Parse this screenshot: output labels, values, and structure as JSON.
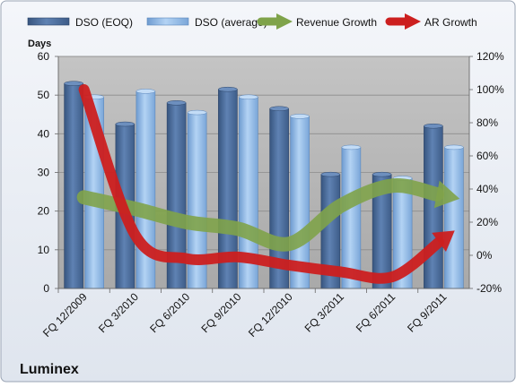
{
  "chart_data": {
    "type": "bar",
    "title": "",
    "company": "Luminex",
    "y_left_label": "Days",
    "y_left_range": [
      0,
      60
    ],
    "y_left_ticks": [
      "0",
      "10",
      "20",
      "30",
      "40",
      "50",
      "60"
    ],
    "y_right_range": [
      -20,
      120
    ],
    "y_right_ticks": [
      "-20%",
      "0%",
      "20%",
      "40%",
      "60%",
      "80%",
      "100%",
      "120%"
    ],
    "categories": [
      "FQ 12/2009",
      "FQ 3/2010",
      "FQ 6/2010",
      "FQ 9/2010",
      "FQ 12/2010",
      "FQ 3/2011",
      "FQ 6/2011",
      "FQ 9/2011"
    ],
    "legend_position": "top",
    "grid": true,
    "bar_series": [
      {
        "name": "DSO (EOQ)",
        "values": [
          53,
          42.5,
          48,
          51.5,
          46.5,
          29.5,
          29.5,
          42
        ],
        "color": "#4a6b9c"
      },
      {
        "name": "DSO (average)",
        "values": [
          49.5,
          51,
          45.5,
          49.5,
          44.5,
          36.5,
          28.5,
          36.5
        ],
        "color": "#8fb8e6"
      }
    ],
    "line_series": [
      {
        "name": "Revenue Growth",
        "values": [
          35,
          28,
          20,
          16,
          7,
          30,
          42,
          36
        ],
        "color": "#7fa34a"
      },
      {
        "name": "AR Growth",
        "values": [
          100,
          12,
          -2,
          -1,
          -6,
          -10,
          -13,
          10
        ],
        "color": "#cc1f1f"
      }
    ]
  }
}
